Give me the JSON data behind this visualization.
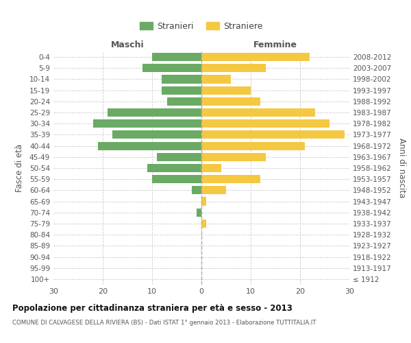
{
  "age_groups": [
    "100+",
    "95-99",
    "90-94",
    "85-89",
    "80-84",
    "75-79",
    "70-74",
    "65-69",
    "60-64",
    "55-59",
    "50-54",
    "45-49",
    "40-44",
    "35-39",
    "30-34",
    "25-29",
    "20-24",
    "15-19",
    "10-14",
    "5-9",
    "0-4"
  ],
  "birth_years": [
    "≤ 1912",
    "1913-1917",
    "1918-1922",
    "1923-1927",
    "1928-1932",
    "1933-1937",
    "1938-1942",
    "1943-1947",
    "1948-1952",
    "1953-1957",
    "1958-1962",
    "1963-1967",
    "1968-1972",
    "1973-1977",
    "1978-1982",
    "1983-1987",
    "1988-1992",
    "1993-1997",
    "1998-2002",
    "2003-2007",
    "2008-2012"
  ],
  "maschi": [
    0,
    0,
    0,
    0,
    0,
    0,
    1,
    0,
    2,
    10,
    11,
    9,
    21,
    18,
    22,
    19,
    7,
    8,
    8,
    12,
    10
  ],
  "femmine": [
    0,
    0,
    0,
    0,
    0,
    1,
    0,
    1,
    5,
    12,
    4,
    13,
    21,
    29,
    26,
    23,
    12,
    10,
    6,
    13,
    22
  ],
  "color_maschi": "#6aaa64",
  "color_femmine": "#f5c842",
  "title": "Popolazione per cittadinanza straniera per età e sesso - 2013",
  "subtitle": "COMUNE DI CALVAGESE DELLA RIVIERA (BS) - Dati ISTAT 1° gennaio 2013 - Elaborazione TUTTITALIA.IT",
  "xlabel_left": "Maschi",
  "xlabel_right": "Femmine",
  "ylabel_left": "Fasce di età",
  "ylabel_right": "Anni di nascita",
  "legend_maschi": "Stranieri",
  "legend_femmine": "Straniere",
  "xlim": 30,
  "background_color": "#ffffff",
  "grid_color": "#cccccc"
}
